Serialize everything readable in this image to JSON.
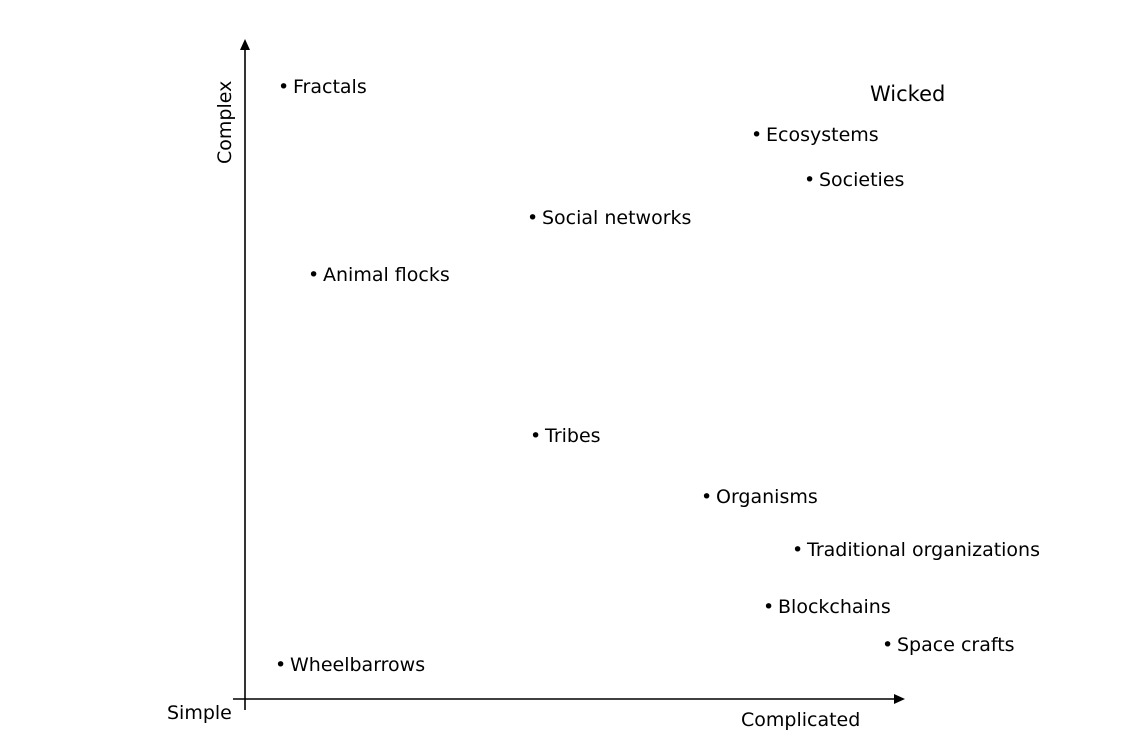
{
  "axes": {
    "x_label": "Complicated",
    "y_label": "Complex",
    "origin_label": "Simple"
  },
  "corner_label": "Wicked",
  "items": [
    {
      "label": "Fractals"
    },
    {
      "label": "Ecosystems"
    },
    {
      "label": "Societies"
    },
    {
      "label": "Social networks"
    },
    {
      "label": "Animal flocks"
    },
    {
      "label": "Tribes"
    },
    {
      "label": "Organisms"
    },
    {
      "label": "Traditional organizations"
    },
    {
      "label": "Blockchains"
    },
    {
      "label": "Space crafts"
    },
    {
      "label": "Wheelbarrows"
    }
  ]
}
